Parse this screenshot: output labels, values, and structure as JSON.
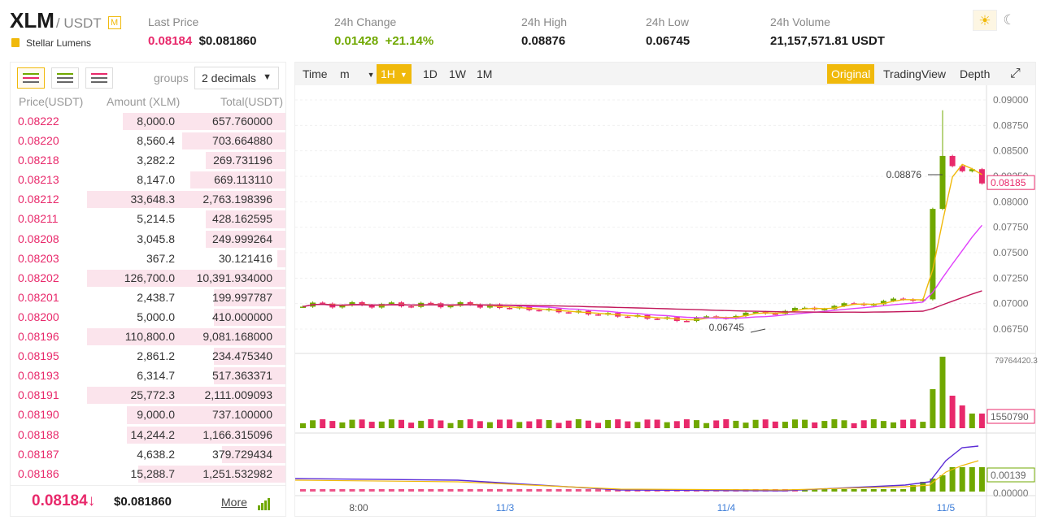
{
  "header": {
    "base": "XLM",
    "quote": "/ USDT",
    "margin_tag": "M",
    "coin_name": "Stellar Lumens",
    "stats": [
      {
        "label": "Last Price",
        "value": "0.08184",
        "value2": "$0.081860"
      },
      {
        "label": "24h Change",
        "value": "0.01428",
        "value2": "+21.14%"
      },
      {
        "label": "24h High",
        "value": "0.08876"
      },
      {
        "label": "24h Low",
        "value": "0.06745"
      },
      {
        "label": "24h Volume",
        "value": "21,157,571.81 USDT"
      }
    ],
    "theme_light": "☀",
    "theme_dark": "☾"
  },
  "book": {
    "groups_label": "groups",
    "groups_value": "2 decimals",
    "col_price": "Price(USDT)",
    "col_amount": "Amount (XLM)",
    "col_total": "Total(USDT)",
    "rows": [
      {
        "price": "0.08222",
        "amount": "8,000.0",
        "total": "657.760000",
        "depth": 0.82
      },
      {
        "price": "0.08220",
        "amount": "8,560.4",
        "total": "703.664880",
        "depth": 0.52
      },
      {
        "price": "0.08218",
        "amount": "3,282.2",
        "total": "269.731196",
        "depth": 0.4
      },
      {
        "price": "0.08213",
        "amount": "8,147.0",
        "total": "669.113110",
        "depth": 0.48
      },
      {
        "price": "0.08212",
        "amount": "33,648.3",
        "total": "2,763.198396",
        "depth": 1.0
      },
      {
        "price": "0.08211",
        "amount": "5,214.5",
        "total": "428.162595",
        "depth": 0.4
      },
      {
        "price": "0.08208",
        "amount": "3,045.8",
        "total": "249.999264",
        "depth": 0.4
      },
      {
        "price": "0.08203",
        "amount": "367.2",
        "total": "30.121416",
        "depth": 0.04
      },
      {
        "price": "0.08202",
        "amount": "126,700.0",
        "total": "10,391.934000",
        "depth": 1.0
      },
      {
        "price": "0.08201",
        "amount": "2,438.7",
        "total": "199.997787",
        "depth": 0.36
      },
      {
        "price": "0.08200",
        "amount": "5,000.0",
        "total": "410.000000",
        "depth": 0.36
      },
      {
        "price": "0.08196",
        "amount": "110,800.0",
        "total": "9,081.168000",
        "depth": 1.0
      },
      {
        "price": "0.08195",
        "amount": "2,861.2",
        "total": "234.475340",
        "depth": 0.36
      },
      {
        "price": "0.08193",
        "amount": "6,314.7",
        "total": "517.363371",
        "depth": 0.36
      },
      {
        "price": "0.08191",
        "amount": "25,772.3",
        "total": "2,111.009093",
        "depth": 1.0
      },
      {
        "price": "0.08190",
        "amount": "9,000.0",
        "total": "737.100000",
        "depth": 0.8
      },
      {
        "price": "0.08188",
        "amount": "14,244.2",
        "total": "1,166.315096",
        "depth": 0.8
      },
      {
        "price": "0.08187",
        "amount": "4,638.2",
        "total": "379.729434",
        "depth": 0.32
      },
      {
        "price": "0.08186",
        "amount": "15,288.7",
        "total": "1,251.532982",
        "depth": 0.74
      }
    ],
    "last_price": "0.08184",
    "last_arrow": "↓",
    "last_usd": "$0.081860",
    "more": "More"
  },
  "chart": {
    "toolbar": {
      "time": "Time",
      "m": "m",
      "h1": "1H",
      "d1": "1D",
      "w1": "1W",
      "mo1": "1M",
      "original": "Original",
      "tradingview": "TradingView",
      "depth": "Depth"
    },
    "price_ticks": [
      "0.09000",
      "0.08750",
      "0.08500",
      "0.08250",
      "0.08000",
      "0.07750",
      "0.07500",
      "0.07250",
      "0.07000",
      "0.06750"
    ],
    "current_price_label": "0.08185",
    "high_label": "0.08876",
    "low_label": "0.06745",
    "vol_max_label": "79764420.3",
    "vol_current_label": "1550790",
    "macd_current_label": "0.00139",
    "macd_zero_label": "0.00000",
    "x_labels": [
      "8:00",
      "11/3",
      "11/4",
      "11/5"
    ],
    "colors": {
      "up": "#70a800",
      "down": "#e8296b",
      "ma_short": "#f0b90b",
      "ma_mid": "#e040fb",
      "ma_long": "#c2185b",
      "macd": "#5b2bd6"
    }
  }
}
